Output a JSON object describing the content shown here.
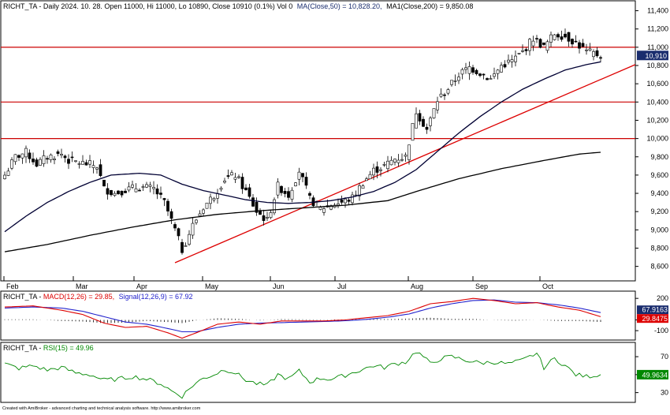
{
  "header": {
    "main": "RICHT_TA - Daily 2024. 10. 28. Open 11000, Hi 11000, Lo 10890, Close 10910 (0.1%) Vol 0",
    "ma50": "MA(Close,50) = 10,828.20,",
    "ma200": "MA1(Close,200) = 9,850.08",
    "macd_title": "RICHT_TA - ",
    "macd_label": "MACD(12,26) = 29.85,",
    "signal_label": "Signal(12,26,9) = 67.92",
    "rsi_title": "RICHT_TA - ",
    "rsi_label": "RSI(15) = 49.96"
  },
  "footer": "Created with AmiBroker - advanced charting and technical analysis software. http://www.amibroker.com",
  "colors": {
    "bullish": "#ffffff",
    "bearish": "#000000",
    "ma50": "#000033",
    "ma200": "#000000",
    "hline": "#cc0000",
    "trend": "#dd0000",
    "macd": "#dd0000",
    "signal": "#2222cc",
    "rsi": "#008800",
    "price_tag": "#1a2d6e",
    "signal_tag": "#1a2d6e",
    "macd_tag": "#dd0000",
    "rsi_tag": "#008800"
  },
  "chart_data": {
    "type": "candlestick",
    "price_axis": {
      "min": 8450,
      "max": 11500,
      "ticks": [
        "8,600",
        "8,800",
        "9,000",
        "9,200",
        "9,400",
        "9,600",
        "9,800",
        "10,000",
        "10,200",
        "10,400",
        "10,600",
        "10,800",
        "11,000",
        "11,200",
        "11,400"
      ]
    },
    "months": [
      "Feb",
      "Mar",
      "Apr",
      "May",
      "Jun",
      "Jul",
      "Aug",
      "Sep",
      "Oct"
    ],
    "horizontal_levels": [
      11000,
      10400,
      10000
    ],
    "trendline": {
      "from": {
        "bar": 48,
        "value": 8640
      },
      "to": {
        "bar": 170,
        "value": 10680
      }
    },
    "last_close_label": "10,910",
    "ohlc_keypoints": [
      [
        0,
        9600
      ],
      [
        3,
        9800
      ],
      [
        6,
        9850
      ],
      [
        9,
        9720
      ],
      [
        12,
        9800
      ],
      [
        16,
        9830
      ],
      [
        18,
        9760
      ],
      [
        22,
        9730
      ],
      [
        26,
        9700
      ],
      [
        28,
        9450
      ],
      [
        31,
        9400
      ],
      [
        34,
        9440
      ],
      [
        38,
        9470
      ],
      [
        42,
        9450
      ],
      [
        45,
        9300
      ],
      [
        48,
        9000
      ],
      [
        50,
        8780
      ],
      [
        53,
        9050
      ],
      [
        56,
        9250
      ],
      [
        59,
        9380
      ],
      [
        62,
        9560
      ],
      [
        65,
        9600
      ],
      [
        68,
        9420
      ],
      [
        71,
        9200
      ],
      [
        74,
        9100
      ],
      [
        77,
        9480
      ],
      [
        80,
        9380
      ],
      [
        83,
        9650
      ],
      [
        86,
        9340
      ],
      [
        89,
        9230
      ],
      [
        92,
        9280
      ],
      [
        95,
        9300
      ],
      [
        98,
        9350
      ],
      [
        101,
        9520
      ],
      [
        104,
        9650
      ],
      [
        107,
        9700
      ],
      [
        110,
        9780
      ],
      [
        113,
        9800
      ],
      [
        116,
        10300
      ],
      [
        119,
        10100
      ],
      [
        122,
        10420
      ],
      [
        125,
        10550
      ],
      [
        128,
        10700
      ],
      [
        131,
        10780
      ],
      [
        134,
        10720
      ],
      [
        137,
        10650
      ],
      [
        140,
        10800
      ],
      [
        143,
        10850
      ],
      [
        146,
        10950
      ],
      [
        149,
        11100
      ],
      [
        152,
        11000
      ],
      [
        155,
        11150
      ],
      [
        158,
        11120
      ],
      [
        161,
        11050
      ],
      [
        164,
        10950
      ],
      [
        168,
        10910
      ]
    ],
    "ma50_keypoints": [
      [
        0,
        8980
      ],
      [
        6,
        9150
      ],
      [
        12,
        9300
      ],
      [
        18,
        9420
      ],
      [
        24,
        9520
      ],
      [
        30,
        9600
      ],
      [
        38,
        9620
      ],
      [
        44,
        9600
      ],
      [
        50,
        9500
      ],
      [
        56,
        9430
      ],
      [
        62,
        9380
      ],
      [
        68,
        9330
      ],
      [
        74,
        9300
      ],
      [
        80,
        9290
      ],
      [
        86,
        9300
      ],
      [
        92,
        9320
      ],
      [
        98,
        9360
      ],
      [
        104,
        9420
      ],
      [
        110,
        9520
      ],
      [
        116,
        9660
      ],
      [
        122,
        9860
      ],
      [
        128,
        10060
      ],
      [
        134,
        10240
      ],
      [
        140,
        10400
      ],
      [
        146,
        10540
      ],
      [
        152,
        10650
      ],
      [
        158,
        10750
      ],
      [
        164,
        10810
      ],
      [
        168,
        10840
      ]
    ],
    "ma200_keypoints": [
      [
        0,
        8760
      ],
      [
        12,
        8840
      ],
      [
        24,
        8940
      ],
      [
        36,
        9030
      ],
      [
        48,
        9110
      ],
      [
        60,
        9170
      ],
      [
        72,
        9210
      ],
      [
        84,
        9240
      ],
      [
        96,
        9270
      ],
      [
        108,
        9320
      ],
      [
        116,
        9420
      ],
      [
        128,
        9560
      ],
      [
        140,
        9670
      ],
      [
        152,
        9760
      ],
      [
        162,
        9830
      ],
      [
        168,
        9850
      ]
    ],
    "macd": {
      "axis": {
        "min": -180,
        "max": 260,
        "ticks": [
          "200",
          "0",
          "-100"
        ]
      },
      "macd_value": "29.8475",
      "signal_value": "67.9163",
      "macd_keypoints": [
        [
          0,
          120
        ],
        [
          8,
          130
        ],
        [
          16,
          90
        ],
        [
          22,
          50
        ],
        [
          28,
          -30
        ],
        [
          34,
          -70
        ],
        [
          40,
          -60
        ],
        [
          46,
          -120
        ],
        [
          50,
          -170
        ],
        [
          54,
          -120
        ],
        [
          60,
          -40
        ],
        [
          66,
          -20
        ],
        [
          72,
          -40
        ],
        [
          78,
          -10
        ],
        [
          84,
          -10
        ],
        [
          90,
          -10
        ],
        [
          96,
          0
        ],
        [
          102,
          20
        ],
        [
          108,
          40
        ],
        [
          114,
          80
        ],
        [
          120,
          150
        ],
        [
          126,
          170
        ],
        [
          132,
          200
        ],
        [
          138,
          180
        ],
        [
          144,
          150
        ],
        [
          150,
          160
        ],
        [
          156,
          120
        ],
        [
          162,
          90
        ],
        [
          168,
          30
        ]
      ],
      "signal_keypoints": [
        [
          0,
          110
        ],
        [
          8,
          120
        ],
        [
          16,
          110
        ],
        [
          22,
          80
        ],
        [
          28,
          30
        ],
        [
          34,
          -20
        ],
        [
          40,
          -40
        ],
        [
          46,
          -80
        ],
        [
          50,
          -110
        ],
        [
          54,
          -110
        ],
        [
          60,
          -70
        ],
        [
          66,
          -40
        ],
        [
          72,
          -30
        ],
        [
          78,
          -25
        ],
        [
          84,
          -20
        ],
        [
          90,
          -15
        ],
        [
          96,
          -8
        ],
        [
          102,
          5
        ],
        [
          108,
          25
        ],
        [
          114,
          55
        ],
        [
          120,
          110
        ],
        [
          126,
          150
        ],
        [
          132,
          180
        ],
        [
          138,
          185
        ],
        [
          144,
          165
        ],
        [
          150,
          160
        ],
        [
          156,
          140
        ],
        [
          162,
          110
        ],
        [
          168,
          68
        ]
      ]
    },
    "rsi": {
      "axis": {
        "min": 20,
        "max": 85,
        "ticks": [
          "70",
          "50",
          "30"
        ]
      },
      "value": "49.9634",
      "keypoints": [
        [
          0,
          62
        ],
        [
          4,
          57
        ],
        [
          8,
          60
        ],
        [
          12,
          55
        ],
        [
          16,
          58
        ],
        [
          20,
          52
        ],
        [
          24,
          50
        ],
        [
          28,
          44
        ],
        [
          32,
          45
        ],
        [
          36,
          48
        ],
        [
          40,
          45
        ],
        [
          44,
          40
        ],
        [
          47,
          32
        ],
        [
          50,
          26
        ],
        [
          53,
          38
        ],
        [
          56,
          46
        ],
        [
          59,
          50
        ],
        [
          62,
          56
        ],
        [
          65,
          52
        ],
        [
          68,
          44
        ],
        [
          71,
          40
        ],
        [
          74,
          38
        ],
        [
          77,
          50
        ],
        [
          80,
          45
        ],
        [
          83,
          54
        ],
        [
          86,
          42
        ],
        [
          89,
          46
        ],
        [
          92,
          45
        ],
        [
          95,
          48
        ],
        [
          98,
          52
        ],
        [
          101,
          56
        ],
        [
          104,
          60
        ],
        [
          107,
          58
        ],
        [
          110,
          62
        ],
        [
          113,
          64
        ],
        [
          116,
          76
        ],
        [
          118,
          70
        ],
        [
          120,
          62
        ],
        [
          123,
          68
        ],
        [
          126,
          70
        ],
        [
          130,
          66
        ],
        [
          134,
          63
        ],
        [
          138,
          64
        ],
        [
          142,
          62
        ],
        [
          146,
          66
        ],
        [
          150,
          74
        ],
        [
          152,
          58
        ],
        [
          155,
          68
        ],
        [
          158,
          60
        ],
        [
          161,
          50
        ],
        [
          164,
          48
        ],
        [
          168,
          50
        ]
      ]
    }
  }
}
